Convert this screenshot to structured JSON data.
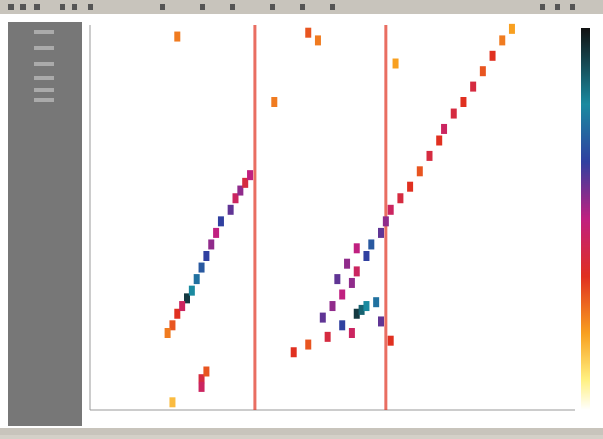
{
  "heatmap": {
    "xlim": [
      0,
      100
    ],
    "ylim": [
      0,
      100
    ],
    "vlim": [
      0,
      100
    ],
    "columns": [
      {
        "x": 34,
        "value": 40
      },
      {
        "x": 61,
        "value": 40
      }
    ],
    "cells": [
      [
        20,
        29,
        95
      ],
      [
        21,
        31,
        85
      ],
      [
        22,
        34,
        80
      ],
      [
        23,
        37,
        75
      ],
      [
        24,
        40,
        70
      ],
      [
        25,
        43,
        60
      ],
      [
        26,
        46,
        55
      ],
      [
        27,
        49,
        70
      ],
      [
        29,
        52,
        65
      ],
      [
        30,
        55,
        50
      ],
      [
        31,
        57,
        60
      ],
      [
        32,
        59,
        45
      ],
      [
        33,
        61,
        55
      ],
      [
        18,
        25,
        40
      ],
      [
        19,
        27,
        50
      ],
      [
        17,
        22,
        35
      ],
      [
        16,
        20,
        30
      ],
      [
        48,
        24,
        65
      ],
      [
        50,
        27,
        60
      ],
      [
        52,
        30,
        55
      ],
      [
        54,
        33,
        60
      ],
      [
        55,
        36,
        50
      ],
      [
        57,
        40,
        70
      ],
      [
        58,
        43,
        75
      ],
      [
        60,
        46,
        65
      ],
      [
        61,
        49,
        60
      ],
      [
        62,
        52,
        50
      ],
      [
        64,
        55,
        45
      ],
      [
        66,
        58,
        40
      ],
      [
        68,
        62,
        35
      ],
      [
        70,
        66,
        45
      ],
      [
        72,
        70,
        40
      ],
      [
        73,
        73,
        50
      ],
      [
        75,
        77,
        45
      ],
      [
        77,
        80,
        40
      ],
      [
        79,
        84,
        45
      ],
      [
        81,
        88,
        35
      ],
      [
        83,
        92,
        40
      ],
      [
        85,
        96,
        30
      ],
      [
        87,
        99,
        25
      ],
      [
        55,
        25,
        95
      ],
      [
        56,
        26,
        90
      ],
      [
        57,
        27,
        85
      ],
      [
        59,
        28,
        80
      ],
      [
        52,
        22,
        70
      ],
      [
        60,
        23,
        65
      ],
      [
        54,
        20,
        50
      ],
      [
        49,
        19,
        45
      ],
      [
        42,
        15,
        40
      ],
      [
        45,
        17,
        35
      ],
      [
        62,
        18,
        40
      ],
      [
        51,
        34,
        65
      ],
      [
        53,
        38,
        60
      ],
      [
        55,
        42,
        55
      ],
      [
        23,
        8,
        45
      ],
      [
        23,
        6,
        50
      ],
      [
        24,
        10,
        35
      ],
      [
        17,
        2,
        20
      ],
      [
        18,
        97,
        30
      ],
      [
        45,
        98,
        35
      ],
      [
        47,
        96,
        30
      ],
      [
        38,
        80,
        30
      ],
      [
        63,
        90,
        25
      ]
    ]
  }
}
